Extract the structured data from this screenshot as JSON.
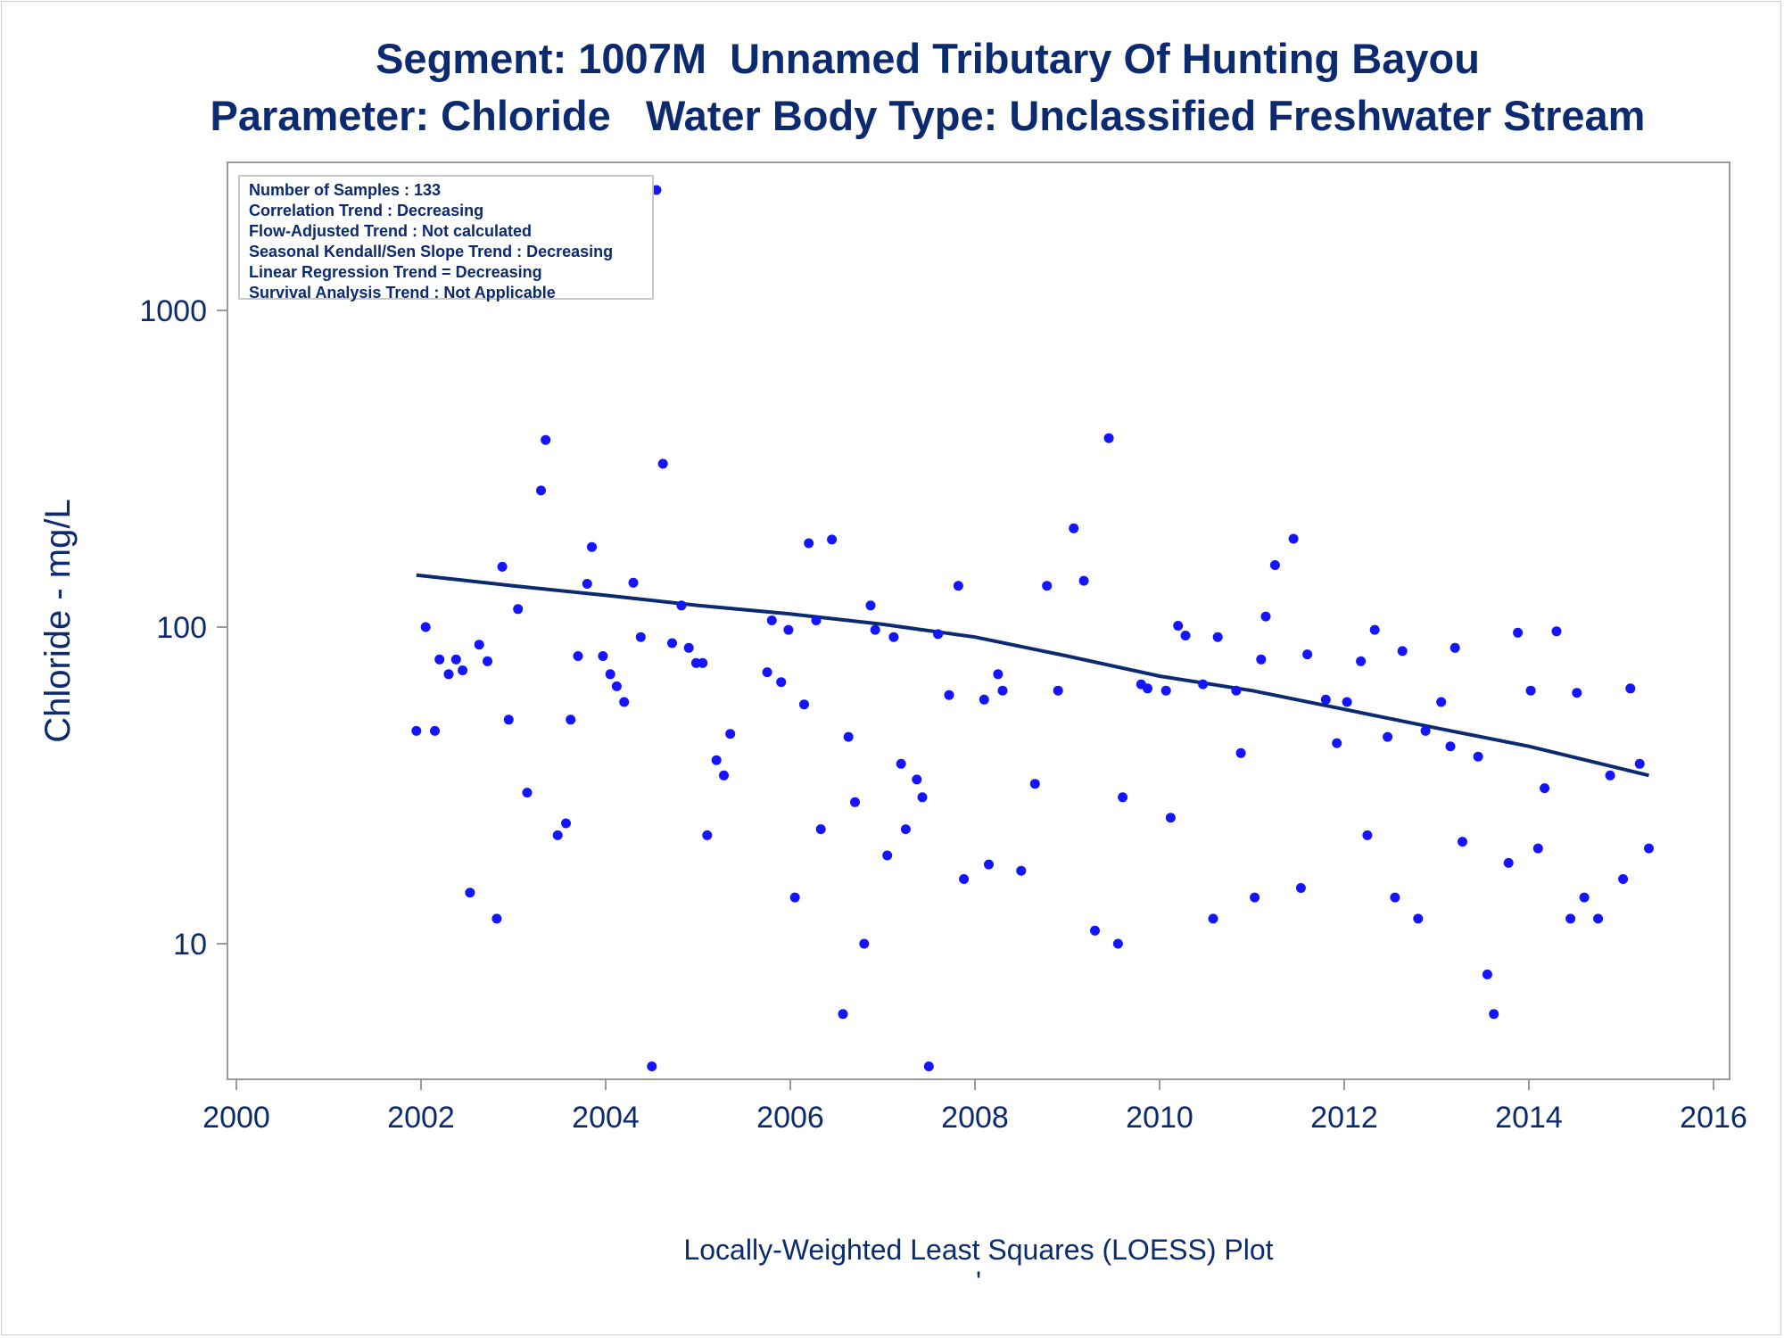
{
  "titles": {
    "line1": "Segment: 1007M  Unnamed Tributary Of Hunting Bayou",
    "line2": "Parameter: Chloride   Water Body Type: Unclassified Freshwater Stream"
  },
  "stats": [
    "Number of Samples : 133",
    "Correlation Trend : Decreasing",
    "Flow-Adjusted Trend : Not calculated",
    "Seasonal Kendall/Sen Slope Trend : Decreasing",
    "Linear Regression Trend = Decreasing",
    "Survival Analysis Trend : Not Applicable"
  ],
  "footnote": "Locally-Weighted Least Squares (LOESS) Plot",
  "footnote_mark": "'",
  "colors": {
    "text": "#0b2a6f",
    "points": "#1414ff",
    "line": "#0b2a6f",
    "frame": "#9a9a9a"
  },
  "chart_data": {
    "type": "scatter",
    "xlabel": "",
    "ylabel": "Chloride - mg/L",
    "yscale": "log",
    "xlim": [
      2000,
      2016
    ],
    "ylim": [
      4,
      2500
    ],
    "xticks": [
      "2000",
      "2002",
      "2004",
      "2006",
      "2008",
      "2010",
      "2012",
      "2014",
      "2016"
    ],
    "yticks": [
      "10",
      "100",
      "1000"
    ],
    "grid": false,
    "points": [
      [
        2001.95,
        47
      ],
      [
        2002.05,
        100
      ],
      [
        2002.15,
        47
      ],
      [
        2002.2,
        79
      ],
      [
        2002.3,
        71
      ],
      [
        2002.38,
        79
      ],
      [
        2002.45,
        73
      ],
      [
        2002.53,
        14.5
      ],
      [
        2002.63,
        88
      ],
      [
        2002.72,
        78
      ],
      [
        2002.82,
        12
      ],
      [
        2002.88,
        155
      ],
      [
        2002.95,
        51
      ],
      [
        2003.05,
        114
      ],
      [
        2003.15,
        30
      ],
      [
        2003.3,
        270
      ],
      [
        2003.35,
        390
      ],
      [
        2003.48,
        22
      ],
      [
        2003.57,
        24
      ],
      [
        2003.62,
        51
      ],
      [
        2003.7,
        81
      ],
      [
        2003.8,
        137
      ],
      [
        2003.85,
        179
      ],
      [
        2003.97,
        81
      ],
      [
        2004.05,
        71
      ],
      [
        2004.12,
        65
      ],
      [
        2004.2,
        58
      ],
      [
        2004.3,
        138
      ],
      [
        2004.38,
        93
      ],
      [
        2004.5,
        4.1
      ],
      [
        2004.55,
        2400
      ],
      [
        2004.62,
        328
      ],
      [
        2004.72,
        89
      ],
      [
        2004.82,
        117
      ],
      [
        2004.9,
        86
      ],
      [
        2004.98,
        77
      ],
      [
        2005.05,
        77
      ],
      [
        2005.1,
        22
      ],
      [
        2005.2,
        38
      ],
      [
        2005.28,
        34
      ],
      [
        2005.35,
        46
      ],
      [
        2005.75,
        72
      ],
      [
        2005.8,
        105
      ],
      [
        2005.9,
        67
      ],
      [
        2005.98,
        98
      ],
      [
        2006.05,
        14
      ],
      [
        2006.15,
        57
      ],
      [
        2006.2,
        184
      ],
      [
        2006.28,
        105
      ],
      [
        2006.33,
        23
      ],
      [
        2006.45,
        189
      ],
      [
        2006.57,
        6
      ],
      [
        2006.63,
        45
      ],
      [
        2006.7,
        28
      ],
      [
        2006.8,
        10
      ],
      [
        2006.87,
        117
      ],
      [
        2006.92,
        98
      ],
      [
        2007.05,
        19
      ],
      [
        2007.12,
        93
      ],
      [
        2007.2,
        37
      ],
      [
        2007.25,
        23
      ],
      [
        2007.37,
        33
      ],
      [
        2007.43,
        29
      ],
      [
        2007.5,
        4.1
      ],
      [
        2007.6,
        95
      ],
      [
        2007.72,
        61
      ],
      [
        2007.82,
        135
      ],
      [
        2007.88,
        16
      ],
      [
        2008.1,
        59
      ],
      [
        2008.15,
        17.8
      ],
      [
        2008.25,
        71
      ],
      [
        2008.3,
        63
      ],
      [
        2008.5,
        17
      ],
      [
        2008.65,
        32
      ],
      [
        2008.78,
        135
      ],
      [
        2008.9,
        63
      ],
      [
        2009.07,
        205
      ],
      [
        2009.18,
        140
      ],
      [
        2009.3,
        11
      ],
      [
        2009.45,
        395
      ],
      [
        2009.55,
        10
      ],
      [
        2009.6,
        29
      ],
      [
        2009.8,
        66
      ],
      [
        2009.87,
        64
      ],
      [
        2010.07,
        63
      ],
      [
        2010.12,
        25
      ],
      [
        2010.2,
        101
      ],
      [
        2010.28,
        94
      ],
      [
        2010.47,
        66
      ],
      [
        2010.58,
        12
      ],
      [
        2010.63,
        93
      ],
      [
        2010.83,
        63
      ],
      [
        2010.88,
        40
      ],
      [
        2011.03,
        14
      ],
      [
        2011.1,
        79
      ],
      [
        2011.15,
        108
      ],
      [
        2011.25,
        157
      ],
      [
        2011.45,
        190
      ],
      [
        2011.53,
        15
      ],
      [
        2011.6,
        82
      ],
      [
        2011.8,
        59
      ],
      [
        2011.92,
        43
      ],
      [
        2012.03,
        58
      ],
      [
        2012.18,
        78
      ],
      [
        2012.25,
        22
      ],
      [
        2012.33,
        98
      ],
      [
        2012.47,
        45
      ],
      [
        2012.55,
        14
      ],
      [
        2012.63,
        84
      ],
      [
        2012.8,
        12
      ],
      [
        2012.88,
        47
      ],
      [
        2013.05,
        58
      ],
      [
        2013.15,
        42
      ],
      [
        2013.2,
        86
      ],
      [
        2013.28,
        21
      ],
      [
        2013.45,
        39
      ],
      [
        2013.55,
        8
      ],
      [
        2013.62,
        6
      ],
      [
        2013.78,
        18
      ],
      [
        2013.88,
        96
      ],
      [
        2014.02,
        63
      ],
      [
        2014.1,
        20
      ],
      [
        2014.17,
        31
      ],
      [
        2014.3,
        97
      ],
      [
        2014.45,
        12
      ],
      [
        2014.52,
        62
      ],
      [
        2014.6,
        14
      ],
      [
        2014.75,
        12
      ],
      [
        2014.88,
        34
      ],
      [
        2015.02,
        16
      ],
      [
        2015.1,
        64
      ],
      [
        2015.2,
        37
      ],
      [
        2015.3,
        20
      ]
    ],
    "series": [
      {
        "type": "line",
        "x": [
          2001.95,
          2003,
          2004,
          2005,
          2006,
          2007,
          2008,
          2009,
          2010,
          2011,
          2012,
          2013,
          2014,
          2015.3
        ],
        "y": [
          146,
          135,
          126,
          117,
          110,
          102,
          93,
          81,
          70,
          63,
          55,
          48,
          42,
          34
        ]
      }
    ]
  }
}
